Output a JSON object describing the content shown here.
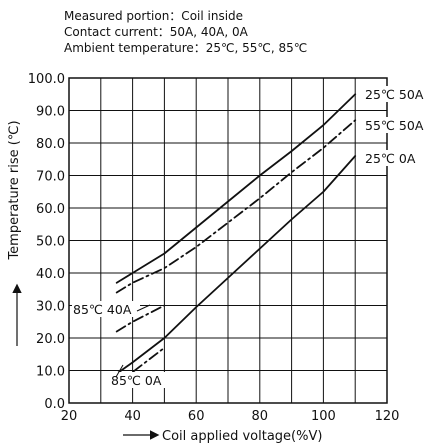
{
  "conditions": {
    "measured_portion": "Measured portion：Coil inside",
    "contact_current": "Contact current：50A, 40A, 0A",
    "ambient_temperature": "Ambient temperature：25℃, 55℃, 85℃"
  },
  "chart_data": {
    "type": "line",
    "title": "",
    "xlabel": "Coil applied voltage(%V)",
    "ylabel": "Temperature rise (℃)",
    "xlim": [
      20,
      120
    ],
    "ylim": [
      0.0,
      100.0
    ],
    "xticks": [
      20,
      40,
      60,
      80,
      100,
      120
    ],
    "x_tick_labels": [
      "20",
      "40",
      "60",
      "80",
      "100",
      "120"
    ],
    "yticks": [
      0.0,
      10.0,
      20.0,
      30.0,
      40.0,
      50.0,
      60.0,
      70.0,
      80.0,
      90.0,
      100.0
    ],
    "y_tick_labels": [
      "0.0",
      "10.0",
      "20.0",
      "30.0",
      "40.0",
      "50.0",
      "60.0",
      "70.0",
      "80.0",
      "90.0",
      "100.0"
    ],
    "grid": true,
    "legend": "none",
    "series": [
      {
        "name": "25℃ 50A",
        "style": "solid",
        "color": "#111111",
        "x": [
          35,
          40,
          50,
          60,
          70,
          80,
          90,
          100,
          110
        ],
        "y": [
          37.0,
          40.0,
          46.0,
          54.0,
          62.0,
          70.0,
          77.5,
          85.5,
          95.0
        ]
      },
      {
        "name": "55℃ 50A",
        "style": "dashdot",
        "color": "#111111",
        "x": [
          35,
          40,
          50,
          60,
          70,
          80,
          90,
          100,
          110
        ],
        "y": [
          34.0,
          37.0,
          41.5,
          48.0,
          55.5,
          63.0,
          71.0,
          78.5,
          87.0
        ]
      },
      {
        "name": "25℃ 0A",
        "style": "solid",
        "color": "#111111",
        "x": [
          35,
          40,
          50,
          60,
          70,
          80,
          90,
          100,
          110
        ],
        "y": [
          9.0,
          12.5,
          20.0,
          29.5,
          38.5,
          47.5,
          56.5,
          65.0,
          76.0
        ]
      },
      {
        "name": "85℃ 40A",
        "style": "dashdot",
        "color": "#111111",
        "x": [
          35,
          40,
          50
        ],
        "y": [
          22.0,
          25.0,
          30.0
        ]
      },
      {
        "name": "85℃ 0A",
        "style": "dashdot",
        "color": "#111111",
        "x": [
          35,
          40,
          50
        ],
        "y": [
          6.5,
          9.5,
          17.0
        ]
      }
    ]
  }
}
